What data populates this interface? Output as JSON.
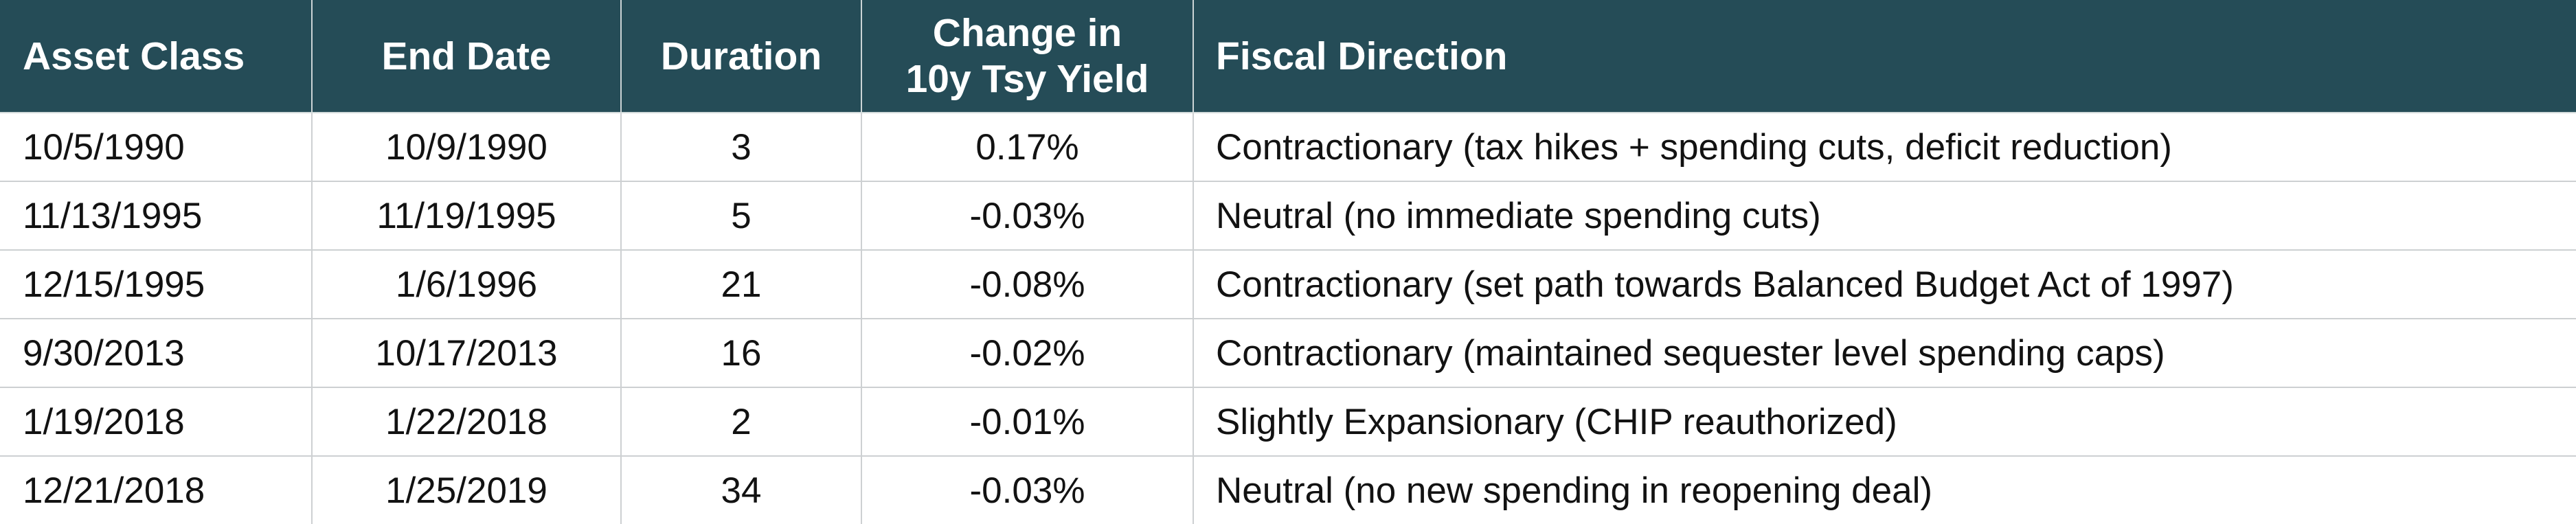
{
  "table": {
    "headers": [
      "Asset Class",
      "End Date",
      "Duration",
      "Change in\n10y Tsy Yield",
      "Fiscal Direction"
    ],
    "rows": [
      [
        "10/5/1990",
        "10/9/1990",
        "3",
        "0.17%",
        "Contractionary (tax hikes + spending cuts, deficit reduction)"
      ],
      [
        "11/13/1995",
        "11/19/1995",
        "5",
        "-0.03%",
        "Neutral (no immediate spending cuts)"
      ],
      [
        "12/15/1995",
        "1/6/1996",
        "21",
        "-0.08%",
        "Contractionary (set path towards Balanced Budget Act of 1997)"
      ],
      [
        "9/30/2013",
        "10/17/2013",
        "16",
        "-0.02%",
        "Contractionary (maintained sequester level spending caps)"
      ],
      [
        "1/19/2018",
        "1/22/2018",
        "2",
        "-0.01%",
        "Slightly Expansionary (CHIP reauthorized)"
      ],
      [
        "12/21/2018",
        "1/25/2019",
        "34",
        "-0.03%",
        "Neutral (no new spending in reopening deal)"
      ]
    ]
  },
  "colors": {
    "header_bg": "#254c57",
    "header_text": "#ffffff",
    "body_text": "#121212",
    "grid_line": "#cdd0d2"
  },
  "chart_data": {
    "type": "table",
    "title": "",
    "columns": [
      "Asset Class",
      "End Date",
      "Duration",
      "Change in 10y Tsy Yield",
      "Fiscal Direction"
    ],
    "rows": [
      [
        "10/5/1990",
        "10/9/1990",
        3,
        "0.17%",
        "Contractionary (tax hikes + spending cuts, deficit reduction)"
      ],
      [
        "11/13/1995",
        "11/19/1995",
        5,
        "-0.03%",
        "Neutral (no immediate spending cuts)"
      ],
      [
        "12/15/1995",
        "1/6/1996",
        21,
        "-0.08%",
        "Contractionary (set path towards Balanced Budget Act of 1997)"
      ],
      [
        "9/30/2013",
        "10/17/2013",
        16,
        "-0.02%",
        "Contractionary (maintained sequester level spending caps)"
      ],
      [
        "1/19/2018",
        "1/22/2018",
        2,
        "-0.01%",
        "Slightly Expansionary (CHIP reauthorized)"
      ],
      [
        "12/21/2018",
        "1/25/2019",
        34,
        "-0.03%",
        "Neutral (no new spending in reopening deal)"
      ]
    ]
  }
}
